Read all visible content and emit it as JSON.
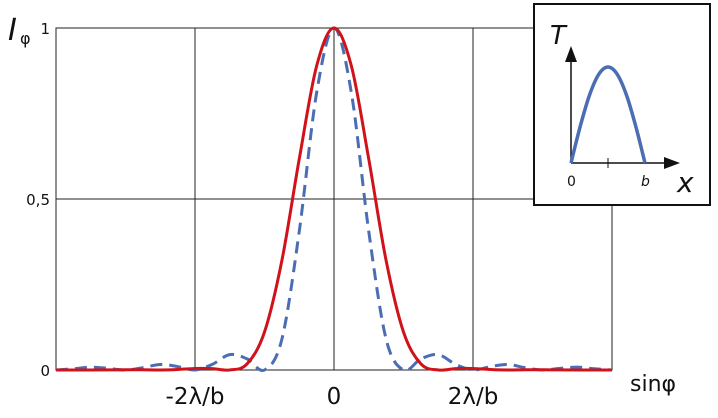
{
  "chart_data": [
    {
      "type": "line",
      "title": "",
      "xlabel": "sinφ",
      "ylabel_main": "I",
      "ylabel_sub": "φ",
      "xlim": [
        -4,
        4
      ],
      "ylim": [
        0,
        1
      ],
      "grid": true,
      "x_unit": "λ/b",
      "x_ticks": [
        {
          "value": -2,
          "label": "-2λ/b"
        },
        {
          "value": 0,
          "label": "0"
        },
        {
          "value": 2,
          "label": "2λ/b"
        }
      ],
      "x_grid": [
        -2,
        0,
        2
      ],
      "y_ticks": [
        {
          "value": 0,
          "label": "0"
        },
        {
          "value": 0.5,
          "label": "0,5"
        },
        {
          "value": 1,
          "label": "1"
        }
      ],
      "x": [
        -4,
        -3.75,
        -3.5,
        -3.25,
        -3,
        -2.75,
        -2.5,
        -2.25,
        -2,
        -1.75,
        -1.5,
        -1.25,
        -1,
        -0.75,
        -0.5,
        -0.25,
        0,
        0.25,
        0.5,
        0.75,
        1,
        1.25,
        1.5,
        1.75,
        2,
        2.25,
        2.5,
        2.75,
        3,
        3.25,
        3.5,
        3.75,
        4
      ],
      "series": [
        {
          "color": "#d0121b",
          "style": "solid",
          "values": [
            0,
            0,
            0,
            0.0003,
            0.0008,
            0.0007,
            0,
            0.0014,
            0.0044,
            0.004,
            0,
            0.0181,
            0.1111,
            0.32,
            0.6169,
            0.8889,
            1,
            0.8889,
            0.6169,
            0.32,
            0.1111,
            0.0181,
            0,
            0.004,
            0.0044,
            0.0014,
            0,
            0.0007,
            0.0008,
            0.0003,
            0,
            0,
            0
          ]
        },
        {
          "color": "#4a6db3",
          "style": "dashed",
          "values": [
            0,
            0.0036,
            0.0083,
            0.0048,
            0,
            0.0067,
            0.0162,
            0.01,
            0,
            0.0165,
            0.045,
            0.0324,
            0,
            0.0901,
            0.4053,
            0.8106,
            1,
            0.8106,
            0.4053,
            0.0901,
            0,
            0.0324,
            0.045,
            0.0165,
            0,
            0.01,
            0.0162,
            0.0067,
            0,
            0.0048,
            0.0083,
            0.0036,
            0
          ]
        }
      ]
    },
    {
      "type": "line",
      "inset": true,
      "xlabel": "x",
      "ylabel": "T",
      "x_ticks": [
        {
          "value": 0,
          "label": "0"
        },
        {
          "value": 0.5,
          "label": ""
        },
        {
          "value": 1,
          "label": "b"
        }
      ],
      "x": [
        0,
        0.125,
        0.25,
        0.375,
        0.5,
        0.625,
        0.75,
        0.875,
        1
      ],
      "series": [
        {
          "color": "#4a6db3",
          "style": "solid",
          "values": [
            0,
            0.383,
            0.707,
            0.924,
            1,
            0.924,
            0.707,
            0.383,
            0
          ]
        }
      ]
    }
  ]
}
